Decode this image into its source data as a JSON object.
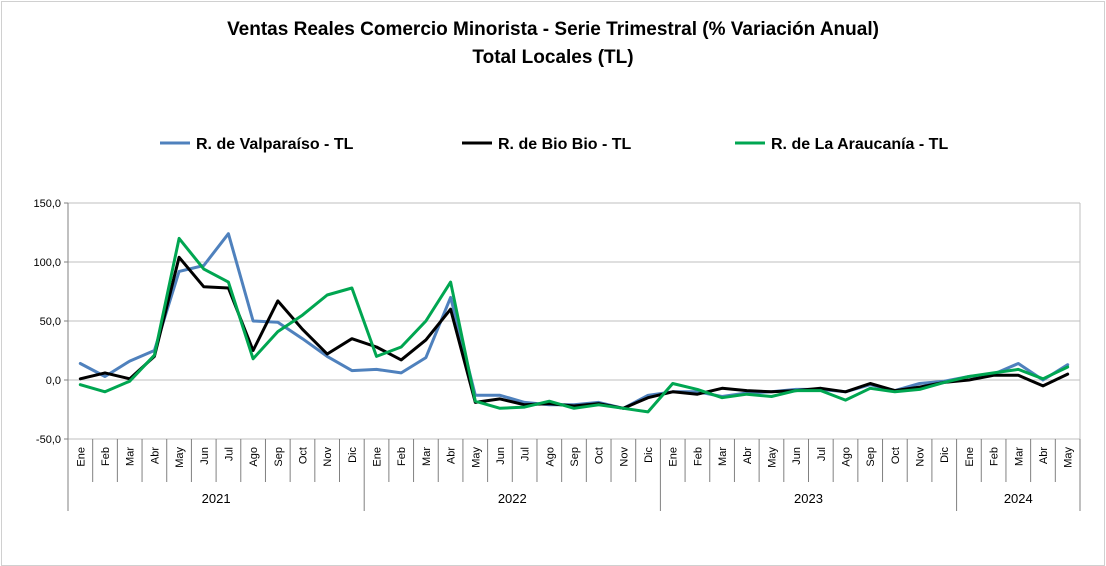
{
  "chart_data": {
    "type": "line",
    "title": "Ventas Reales Comercio Minorista - Serie Trimestral (% Variación Anual)",
    "subtitle": "Total Locales (TL)",
    "xlabel": "",
    "ylabel": "",
    "ylim": [
      -50,
      150
    ],
    "yticks": [
      -50,
      0,
      50,
      100,
      150
    ],
    "ytick_labels": [
      "-50,0",
      "0,0",
      "50,0",
      "100,0",
      "150,0"
    ],
    "grid": true,
    "legend_position": "top",
    "categories": [
      "Ene",
      "Feb",
      "Mar",
      "Abr",
      "May",
      "Jun",
      "Jul",
      "Ago",
      "Sep",
      "Oct",
      "Nov",
      "Dic",
      "Ene",
      "Feb",
      "Mar",
      "Abr",
      "May",
      "Jun",
      "Jul",
      "Ago",
      "Sep",
      "Oct",
      "Nov",
      "Dic",
      "Ene",
      "Feb",
      "Mar",
      "Abr",
      "May",
      "Jun",
      "Jul",
      "Ago",
      "Sep",
      "Oct",
      "Nov",
      "Dic",
      "Ene",
      "Feb",
      "Mar",
      "Abr",
      "May"
    ],
    "year_groups": [
      {
        "label": "2021",
        "count": 12
      },
      {
        "label": "2022",
        "count": 12
      },
      {
        "label": "2023",
        "count": 12
      },
      {
        "label": "2024",
        "count": 5
      }
    ],
    "series": [
      {
        "name": "R. de Valparaíso - TL",
        "color": "#4f81bd",
        "values": [
          14,
          3,
          16,
          25,
          92,
          97,
          124,
          50,
          49,
          35,
          20,
          8,
          9,
          6,
          19,
          70,
          -13,
          -13,
          -19,
          -21,
          -21,
          -19,
          -24,
          -13,
          -10,
          -10,
          -14,
          -11,
          -10,
          -8,
          -8,
          -10,
          -4,
          -9,
          -3,
          -1,
          3,
          5,
          14,
          0,
          13
        ]
      },
      {
        "name": "R. de Bio Bio - TL",
        "color": "#000000",
        "values": [
          1,
          6,
          1,
          20,
          104,
          79,
          78,
          25,
          67,
          43,
          22,
          35,
          28,
          17,
          34,
          60,
          -19,
          -16,
          -21,
          -20,
          -22,
          -20,
          -24,
          -15,
          -10,
          -12,
          -7,
          -9,
          -10,
          -9,
          -7,
          -10,
          -3,
          -9,
          -6,
          -2,
          0,
          4,
          4,
          -5,
          5
        ]
      },
      {
        "name": "R. de La Araucanía - TL",
        "color": "#00a651",
        "values": [
          -4,
          -10,
          -1,
          21,
          120,
          94,
          83,
          18,
          41,
          55,
          72,
          78,
          20,
          28,
          50,
          83,
          -18,
          -24,
          -23,
          -18,
          -24,
          -21,
          -24,
          -27,
          -3,
          -8,
          -15,
          -12,
          -14,
          -9,
          -9,
          -17,
          -7,
          -10,
          -8,
          -2,
          3,
          6,
          9,
          1,
          11
        ]
      }
    ]
  }
}
